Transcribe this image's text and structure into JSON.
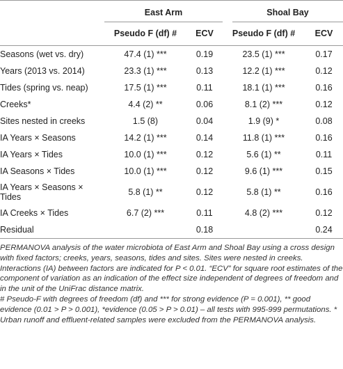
{
  "table": {
    "group_headers": [
      "East Arm",
      "Shoal Bay"
    ],
    "column_headers": [
      "Pseudo F (df) #",
      "ECV",
      "Pseudo F (df) #",
      "ECV"
    ],
    "rows": [
      [
        "Seasons (wet vs. dry)",
        "47.4 (1) ***",
        "0.19",
        "23.5 (1) ***",
        "0.17"
      ],
      [
        "Years (2013 vs. 2014)",
        "23.3 (1) ***",
        "0.13",
        "12.2 (1) ***",
        "0.12"
      ],
      [
        "Tides (spring vs. neap)",
        "17.5 (1) ***",
        "0.11",
        "18.1 (1) ***",
        "0.16"
      ],
      [
        "Creeks*",
        "4.4 (2) **",
        "0.06",
        "8.1 (2) ***",
        "0.12"
      ],
      [
        "Sites nested in creeks",
        "1.5 (8)",
        "0.04",
        "1.9 (9) *",
        "0.08"
      ],
      [
        "IA Years × Seasons",
        "14.2 (1) ***",
        "0.14",
        "11.8 (1) ***",
        "0.16"
      ],
      [
        "IA Years × Tides",
        "10.0 (1) ***",
        "0.12",
        "5.6 (1) **",
        "0.11"
      ],
      [
        "IA Seasons × Tides",
        "10.0 (1) ***",
        "0.12",
        "9.6 (1) ***",
        "0.15"
      ],
      [
        "IA Years × Seasons × Tides",
        "5.8 (1) **",
        "0.12",
        "5.8 (1) **",
        "0.16"
      ],
      [
        "IA Creeks × Tides",
        "6.7 (2) ***",
        "0.11",
        "4.8 (2) ***",
        "0.12"
      ],
      [
        "Residual",
        null,
        "0.18",
        null,
        "0.24"
      ]
    ]
  },
  "footnotes": [
    "PERMANOVA analysis of the water microbiota of East Arm and Shoal Bay using a cross design with fixed factors; creeks, years, seasons, tides and sites. Sites were nested in creeks. Interactions (IA) between factors are indicated for P < 0.01. “ECV” for square root estimates of the component of variation as an indication of the effect size independent of degrees of freedom and in the unit of the UniFrac distance matrix.",
    "# Pseudo-F with degrees of freedom (df) and *** for strong evidence (P = 0.001), ** good evidence (0.01 > P > 0.001), *evidence (0.05 > P > 0.01) – all tests with 995-999 permutations. * Urban runoff and effluent-related samples were excluded from the PERMANOVA analysis."
  ]
}
